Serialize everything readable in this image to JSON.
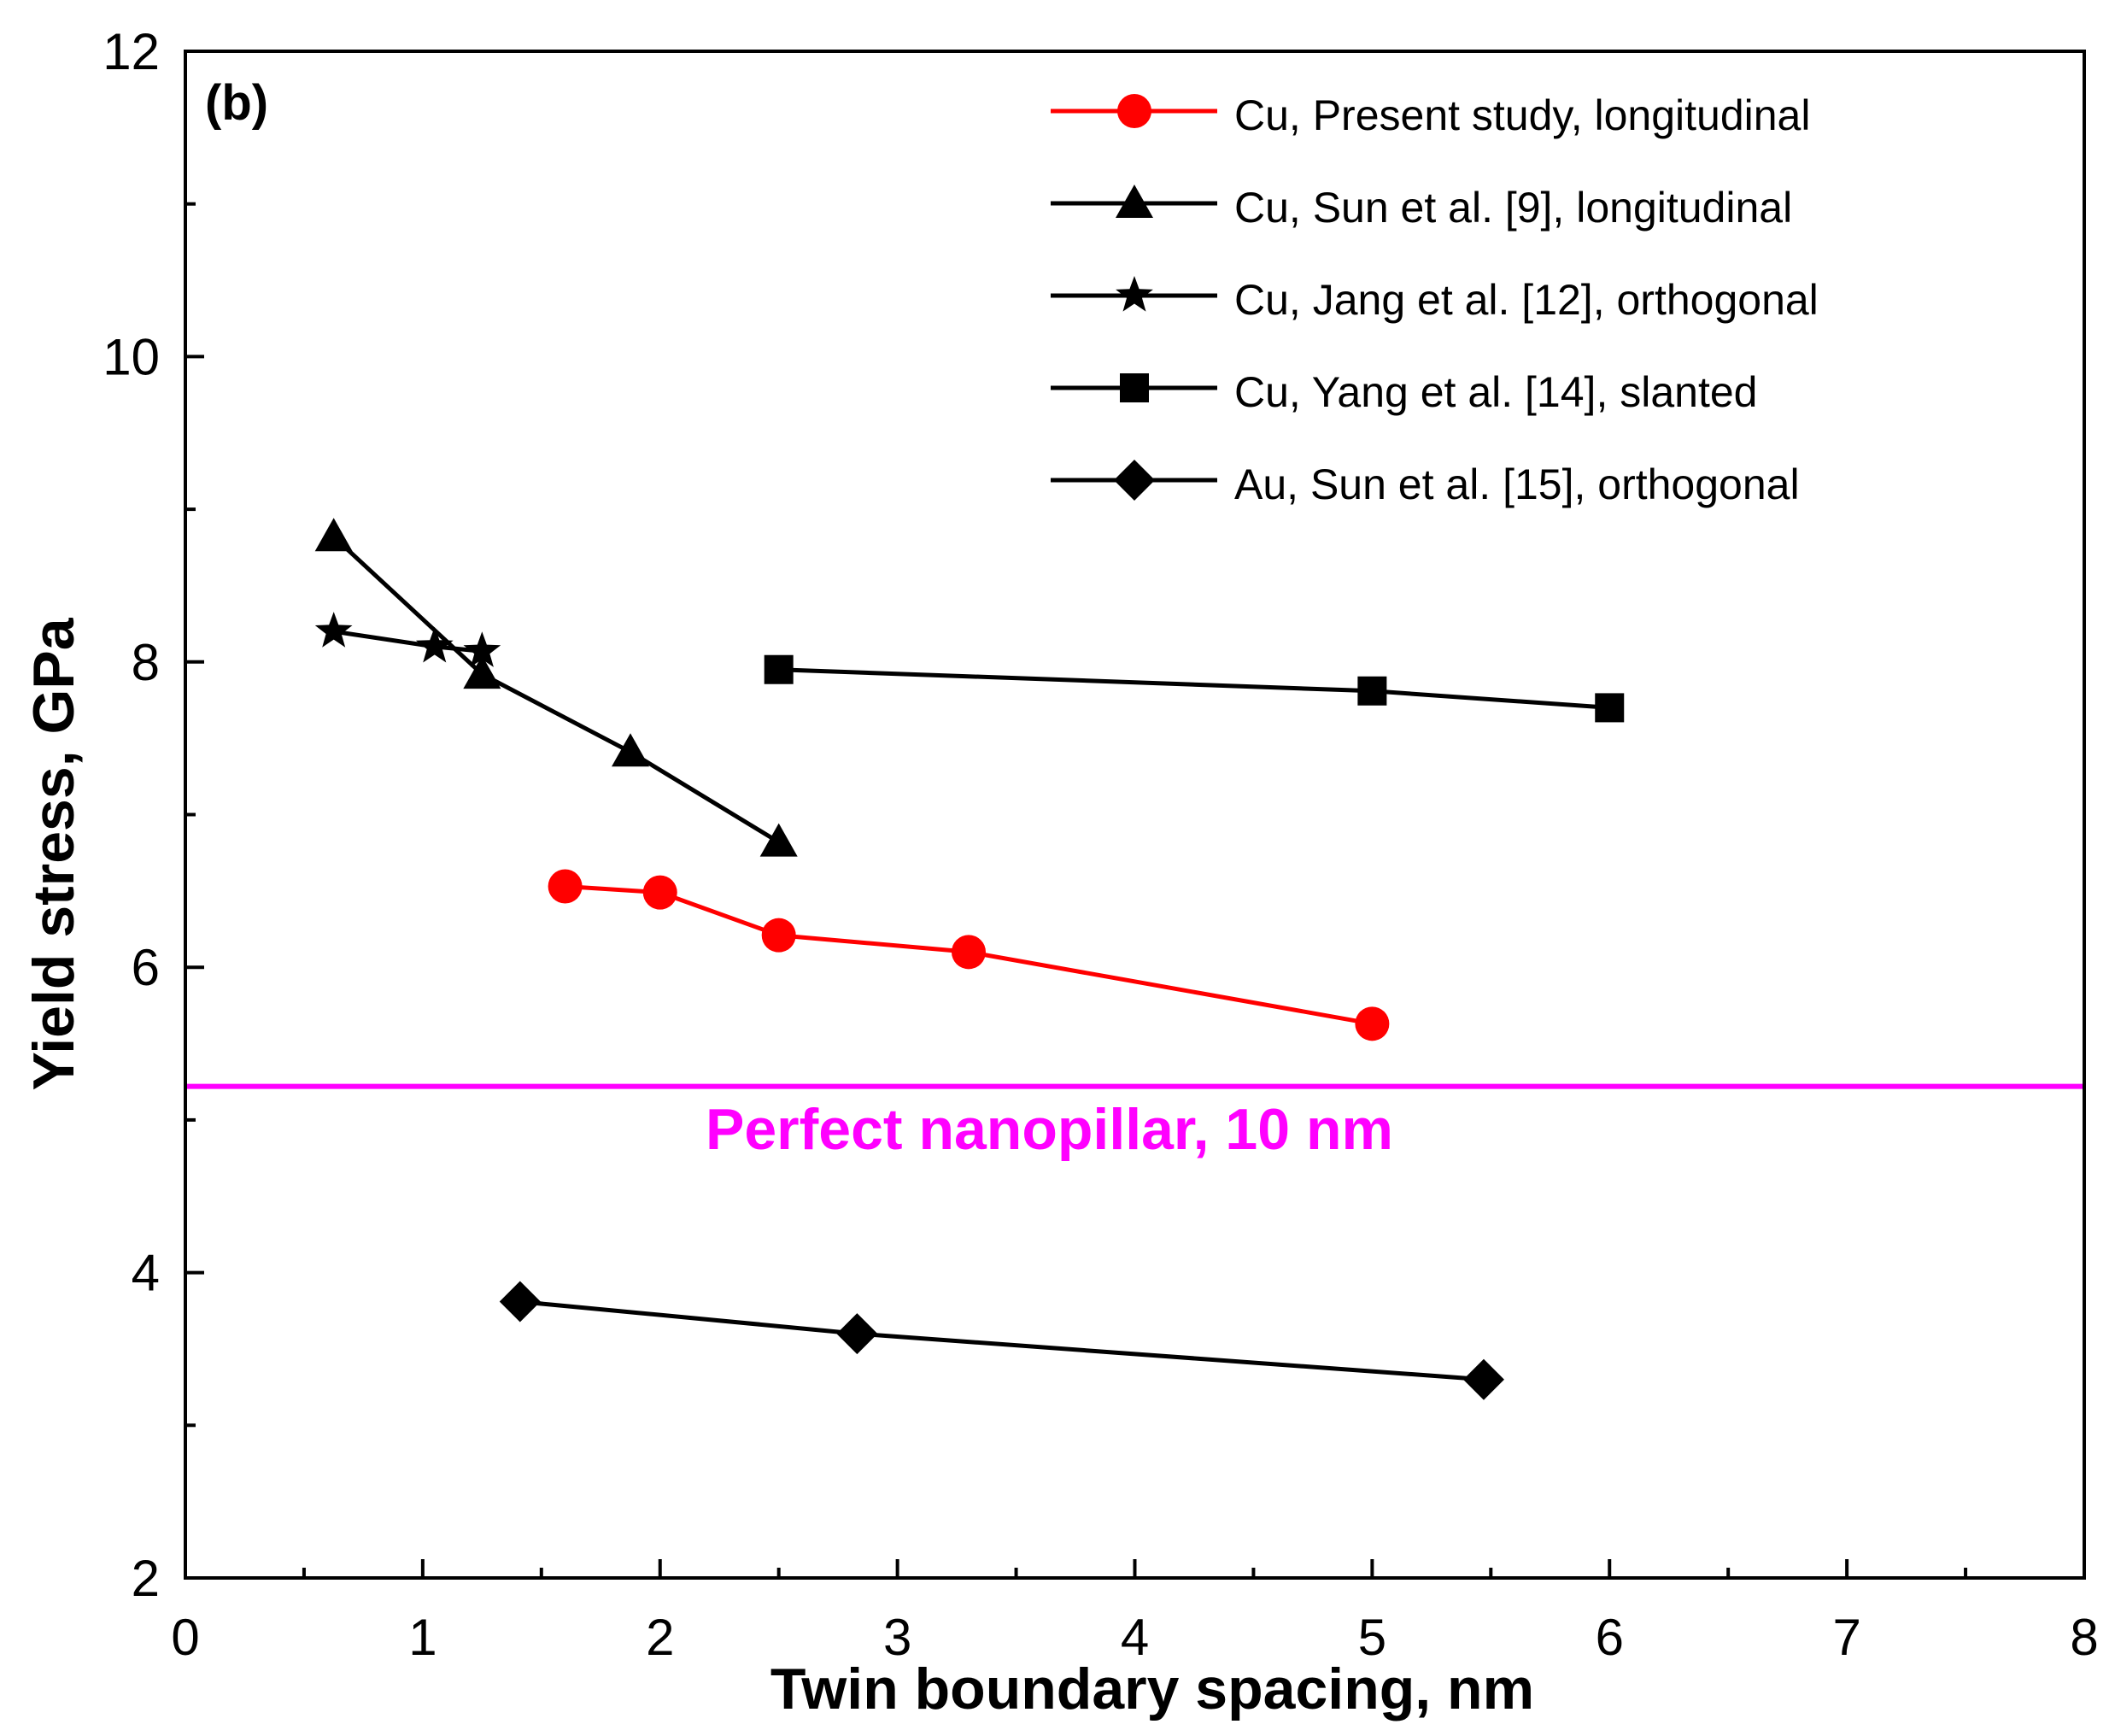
{
  "chart_data": {
    "type": "line",
    "panel_label": "(b)",
    "xlabel": "Twin boundary spacing, nm",
    "ylabel": "Yield stress, GPa",
    "xlim": [
      0,
      8
    ],
    "ylim": [
      2,
      12
    ],
    "x_ticks": [
      "0",
      "1",
      "2",
      "3",
      "4",
      "5",
      "6",
      "7",
      "8"
    ],
    "y_ticks": [
      "2",
      "4",
      "6",
      "8",
      "10",
      "12"
    ],
    "grid": false,
    "legend_position": "top-right",
    "reference_line": {
      "y": 5.22,
      "label": "Perfect nanopillar, 10 nm",
      "color": "#ff00ff"
    },
    "series": [
      {
        "name": "Cu, Present study, longitudinal",
        "marker": "circle",
        "color": "#ff0000",
        "x": [
          1.6,
          2.0,
          2.5,
          3.3,
          5.0
        ],
        "y": [
          6.53,
          6.49,
          6.21,
          6.1,
          5.63
        ]
      },
      {
        "name": "Cu, Sun et al. [9], longitudinal",
        "marker": "triangle",
        "color": "#000000",
        "x": [
          0.625,
          1.25,
          1.875,
          2.5
        ],
        "y": [
          8.82,
          7.92,
          7.41,
          6.82
        ]
      },
      {
        "name": "Cu, Jang et al. [12], orthogonal",
        "marker": "star",
        "color": "#000000",
        "x": [
          0.625,
          1.05,
          1.25
        ],
        "y": [
          8.2,
          8.1,
          8.07
        ]
      },
      {
        "name": "Cu, Yang et al. [14], slanted",
        "marker": "square",
        "color": "#000000",
        "x": [
          2.5,
          5.0,
          6.0
        ],
        "y": [
          7.95,
          7.81,
          7.7
        ]
      },
      {
        "name": "Au, Sun et al. [15], orthogonal",
        "marker": "diamond",
        "color": "#000000",
        "x": [
          1.41,
          2.83,
          5.47
        ],
        "y": [
          3.81,
          3.6,
          3.3
        ]
      }
    ]
  }
}
